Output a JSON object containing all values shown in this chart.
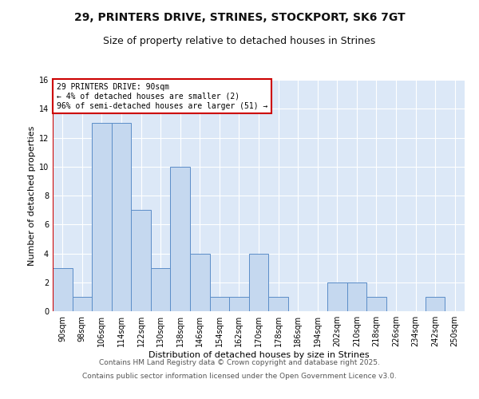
{
  "title_line1": "29, PRINTERS DRIVE, STRINES, STOCKPORT, SK6 7GT",
  "title_line2": "Size of property relative to detached houses in Strines",
  "categories": [
    "90sqm",
    "98sqm",
    "106sqm",
    "114sqm",
    "122sqm",
    "130sqm",
    "138sqm",
    "146sqm",
    "154sqm",
    "162sqm",
    "170sqm",
    "178sqm",
    "186sqm",
    "194sqm",
    "202sqm",
    "210sqm",
    "218sqm",
    "226sqm",
    "234sqm",
    "242sqm",
    "250sqm"
  ],
  "values": [
    3,
    1,
    13,
    13,
    7,
    3,
    10,
    4,
    1,
    1,
    4,
    1,
    0,
    0,
    2,
    2,
    1,
    0,
    0,
    1,
    0
  ],
  "bar_color": "#c5d8ef",
  "bar_edge_color": "#5b8dc8",
  "highlight_line_color": "#cc0000",
  "annotation_text": "29 PRINTERS DRIVE: 90sqm\n← 4% of detached houses are smaller (2)\n96% of semi-detached houses are larger (51) →",
  "annotation_box_color": "#ffffff",
  "annotation_box_edge_color": "#cc0000",
  "ylabel": "Number of detached properties",
  "xlabel": "Distribution of detached houses by size in Strines",
  "ylim": [
    0,
    16
  ],
  "yticks": [
    0,
    2,
    4,
    6,
    8,
    10,
    12,
    14,
    16
  ],
  "footer_line1": "Contains HM Land Registry data © Crown copyright and database right 2025.",
  "footer_line2": "Contains public sector information licensed under the Open Government Licence v3.0.",
  "plot_bg_color": "#dce8f7",
  "fig_bg_color": "#ffffff",
  "grid_color": "#ffffff",
  "title_fontsize": 10,
  "subtitle_fontsize": 9,
  "axis_label_fontsize": 8,
  "tick_fontsize": 7,
  "annotation_fontsize": 7,
  "footer_fontsize": 6.5
}
